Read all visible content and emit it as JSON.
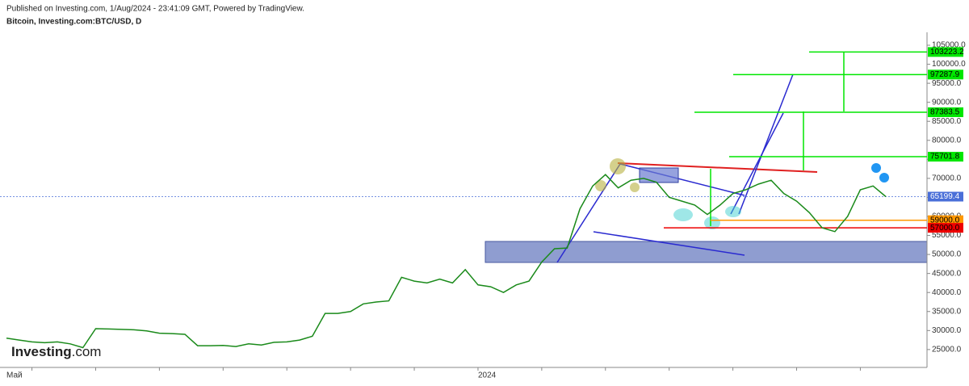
{
  "header": {
    "published": "Published on Investing.com, 1/Aug/2024 - 23:41:09 GMT, Powered by TradingView.",
    "symbol": "Bitcoin, Investing.com:BTC/USD, D",
    "logo": "Investing",
    "logo_suffix": ".com"
  },
  "chart_data": {
    "type": "line",
    "color": "#1a8a1a",
    "categories": [
      "Май",
      null,
      null,
      null,
      null,
      null,
      null,
      null,
      null,
      null,
      null,
      null,
      null,
      null,
      null,
      null,
      null,
      null,
      null,
      null,
      null,
      null,
      null,
      null,
      null,
      null,
      null,
      null,
      null,
      null,
      null,
      null,
      null,
      null,
      null,
      null,
      null,
      "2024",
      null,
      null,
      null,
      null,
      null,
      null,
      null,
      null,
      null,
      null,
      null,
      null,
      null,
      null,
      null,
      null,
      null,
      null,
      null,
      null,
      null,
      null,
      null,
      null,
      null,
      null,
      null,
      null,
      null,
      null,
      null,
      null
    ],
    "values": [
      28000,
      27500,
      27000,
      26800,
      27000,
      26500,
      25500,
      30500,
      30400,
      30300,
      30200,
      29900,
      29300,
      29200,
      29000,
      26000,
      26000,
      26100,
      25800,
      26500,
      26200,
      26900,
      27000,
      27500,
      28500,
      34500,
      34500,
      35000,
      37000,
      37500,
      37800,
      44000,
      43000,
      42500,
      43500,
      42500,
      46000,
      42000,
      41500,
      40000,
      42000,
      43000,
      48000,
      51500,
      51700,
      62000,
      68000,
      71000,
      67500,
      69500,
      70000,
      69000,
      65000,
      64000,
      63000,
      60500,
      63000,
      66000,
      67000,
      68500,
      69500,
      66000,
      64000,
      61000,
      57000,
      56000,
      60000,
      67000,
      68000,
      65199.4
    ],
    "ylim": [
      20300,
      108400
    ],
    "yticks": [
      {
        "value": 25000,
        "label": "25000.0"
      },
      {
        "value": 30000,
        "label": "30000.0"
      },
      {
        "value": 35000,
        "label": "35000.0"
      },
      {
        "value": 40000,
        "label": "40000.0"
      },
      {
        "value": 45000,
        "label": "45000.0"
      },
      {
        "value": 50000,
        "label": "50000.0"
      },
      {
        "value": 55000,
        "label": "55000.0"
      },
      {
        "value": 60000,
        "label": "60000.0"
      },
      {
        "value": 65000,
        "label": "65000.0"
      },
      {
        "value": 70000,
        "label": "70000.0"
      },
      {
        "value": 75000,
        "label": "75000.0"
      },
      {
        "value": 80000,
        "label": "80000.0"
      },
      {
        "value": 85000,
        "label": "85000.0"
      },
      {
        "value": 90000,
        "label": "90000.0"
      },
      {
        "value": 95000,
        "label": "95000.0"
      },
      {
        "value": 100000,
        "label": "100000.0"
      },
      {
        "value": 105000,
        "label": "105000.0"
      }
    ],
    "levels": [
      {
        "value": 103223.2,
        "label": "103223.2",
        "color": "#00e600"
      },
      {
        "value": 97287.9,
        "label": "97287.9",
        "color": "#00e600"
      },
      {
        "value": 87383.5,
        "label": "87383.5",
        "color": "#00e600"
      },
      {
        "value": 75701.8,
        "label": "75701.8",
        "color": "#00e600"
      },
      {
        "value": 65199.4,
        "label": "65199.4",
        "color": "#4a6fd8"
      },
      {
        "value": 59000,
        "label": "59000.0",
        "color": "#ff9800"
      },
      {
        "value": 57000,
        "label": "57000.0",
        "color": "#ee0000"
      }
    ]
  }
}
